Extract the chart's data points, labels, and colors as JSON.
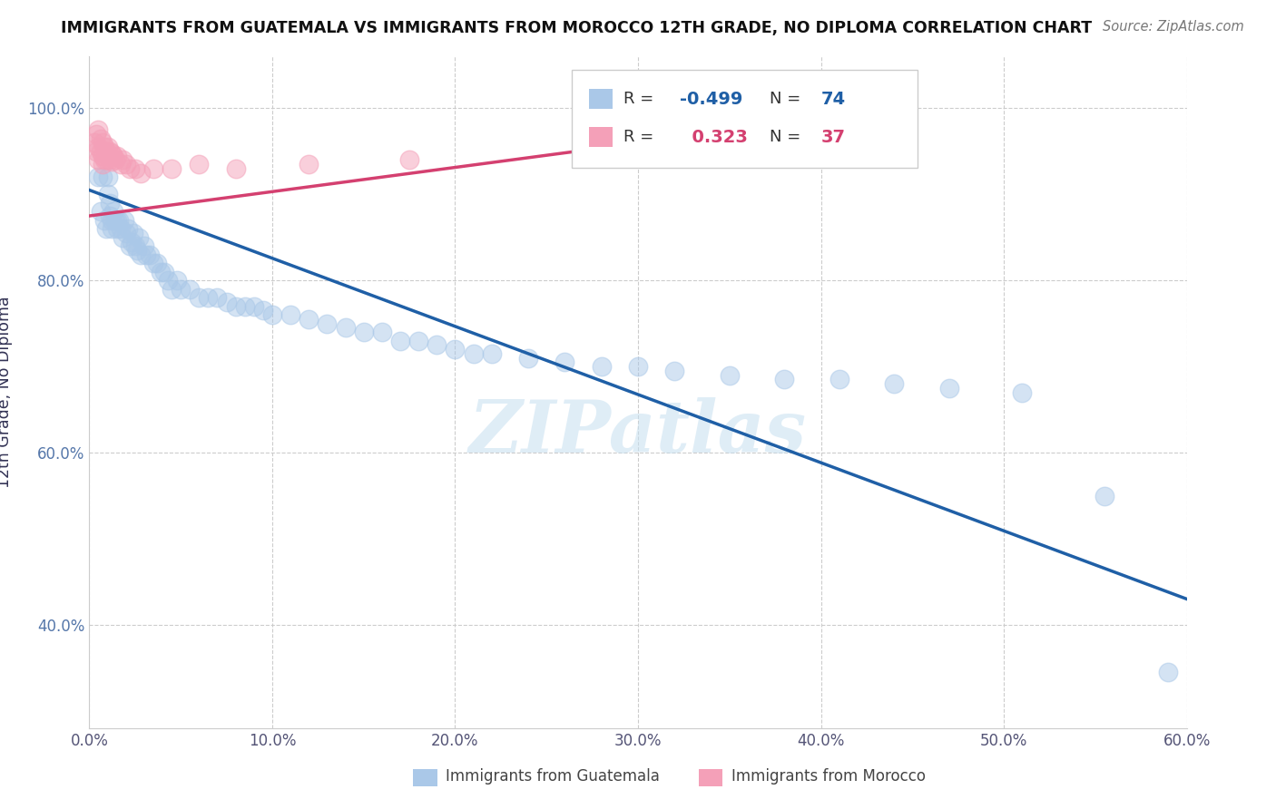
{
  "title": "IMMIGRANTS FROM GUATEMALA VS IMMIGRANTS FROM MOROCCO 12TH GRADE, NO DIPLOMA CORRELATION CHART",
  "source": "Source: ZipAtlas.com",
  "ylabel": "12th Grade, No Diploma",
  "xlim": [
    0.0,
    0.6
  ],
  "ylim": [
    0.28,
    1.06
  ],
  "xtick_labels": [
    "0.0%",
    "10.0%",
    "20.0%",
    "30.0%",
    "40.0%",
    "50.0%",
    "60.0%"
  ],
  "xtick_vals": [
    0.0,
    0.1,
    0.2,
    0.3,
    0.4,
    0.5,
    0.6
  ],
  "ytick_labels": [
    "40.0%",
    "60.0%",
    "80.0%",
    "100.0%"
  ],
  "ytick_vals": [
    0.4,
    0.6,
    0.8,
    1.0
  ],
  "R_blue": -0.499,
  "N_blue": 74,
  "R_pink": 0.323,
  "N_pink": 37,
  "blue_color": "#aac8e8",
  "blue_line_color": "#1f5fa6",
  "pink_color": "#f4a0b8",
  "pink_line_color": "#d44070",
  "watermark": "ZIPatlas",
  "blue_line_x0": 0.0,
  "blue_line_y0": 0.905,
  "blue_line_x1": 0.6,
  "blue_line_y1": 0.43,
  "pink_line_x0": 0.0,
  "pink_line_y0": 0.875,
  "pink_line_x1": 0.355,
  "pink_line_y1": 0.975,
  "blue_x": [
    0.005,
    0.006,
    0.007,
    0.008,
    0.009,
    0.01,
    0.01,
    0.011,
    0.011,
    0.012,
    0.012,
    0.013,
    0.014,
    0.015,
    0.015,
    0.016,
    0.017,
    0.018,
    0.019,
    0.02,
    0.021,
    0.022,
    0.023,
    0.024,
    0.025,
    0.026,
    0.027,
    0.028,
    0.03,
    0.031,
    0.033,
    0.035,
    0.037,
    0.039,
    0.041,
    0.043,
    0.045,
    0.048,
    0.05,
    0.055,
    0.06,
    0.065,
    0.07,
    0.075,
    0.08,
    0.085,
    0.09,
    0.095,
    0.1,
    0.11,
    0.12,
    0.13,
    0.14,
    0.15,
    0.16,
    0.17,
    0.18,
    0.19,
    0.2,
    0.21,
    0.22,
    0.24,
    0.26,
    0.28,
    0.3,
    0.32,
    0.35,
    0.38,
    0.41,
    0.44,
    0.47,
    0.51,
    0.555,
    0.59
  ],
  "blue_y": [
    0.92,
    0.88,
    0.92,
    0.87,
    0.86,
    0.92,
    0.9,
    0.89,
    0.875,
    0.86,
    0.87,
    0.88,
    0.87,
    0.87,
    0.86,
    0.87,
    0.86,
    0.85,
    0.87,
    0.855,
    0.86,
    0.84,
    0.845,
    0.855,
    0.84,
    0.835,
    0.85,
    0.83,
    0.84,
    0.83,
    0.83,
    0.82,
    0.82,
    0.81,
    0.81,
    0.8,
    0.79,
    0.8,
    0.79,
    0.79,
    0.78,
    0.78,
    0.78,
    0.775,
    0.77,
    0.77,
    0.77,
    0.765,
    0.76,
    0.76,
    0.755,
    0.75,
    0.745,
    0.74,
    0.74,
    0.73,
    0.73,
    0.725,
    0.72,
    0.715,
    0.715,
    0.71,
    0.705,
    0.7,
    0.7,
    0.695,
    0.69,
    0.685,
    0.685,
    0.68,
    0.675,
    0.67,
    0.55,
    0.345
  ],
  "pink_x": [
    0.003,
    0.004,
    0.004,
    0.005,
    0.005,
    0.005,
    0.006,
    0.006,
    0.007,
    0.007,
    0.007,
    0.008,
    0.008,
    0.009,
    0.009,
    0.01,
    0.01,
    0.011,
    0.011,
    0.012,
    0.012,
    0.013,
    0.014,
    0.015,
    0.017,
    0.018,
    0.02,
    0.022,
    0.025,
    0.028,
    0.035,
    0.045,
    0.06,
    0.08,
    0.12,
    0.175,
    0.355
  ],
  "pink_y": [
    0.96,
    0.97,
    0.95,
    0.975,
    0.955,
    0.94,
    0.965,
    0.95,
    0.96,
    0.945,
    0.935,
    0.955,
    0.94,
    0.95,
    0.94,
    0.955,
    0.945,
    0.95,
    0.94,
    0.948,
    0.938,
    0.945,
    0.94,
    0.945,
    0.935,
    0.94,
    0.935,
    0.93,
    0.93,
    0.925,
    0.93,
    0.93,
    0.935,
    0.93,
    0.935,
    0.94,
    0.98
  ]
}
